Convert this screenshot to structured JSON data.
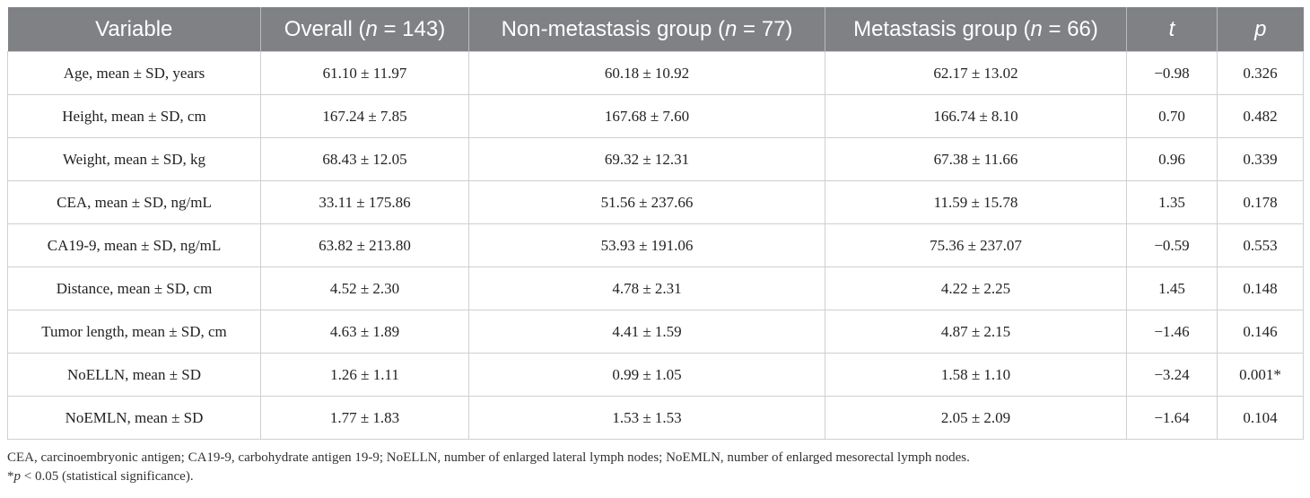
{
  "table": {
    "headers": [
      {
        "pre": "Variable",
        "it": "",
        "post": ""
      },
      {
        "pre": "Overall (",
        "it": "n",
        "post": " = 143)"
      },
      {
        "pre": "Non-metastasis group (",
        "it": "n",
        "post": " = 77)"
      },
      {
        "pre": "Metastasis group (",
        "it": "n",
        "post": " = 66)"
      },
      {
        "pre": "",
        "it": "t",
        "post": ""
      },
      {
        "pre": "",
        "it": "p",
        "post": ""
      }
    ],
    "rows": [
      [
        "Age, mean ± SD, years",
        "61.10 ± 11.97",
        "60.18 ± 10.92",
        "62.17 ± 13.02",
        "−0.98",
        "0.326"
      ],
      [
        "Height, mean ± SD, cm",
        "167.24 ± 7.85",
        "167.68 ± 7.60",
        "166.74 ± 8.10",
        "0.70",
        "0.482"
      ],
      [
        "Weight, mean ± SD, kg",
        "68.43 ± 12.05",
        "69.32 ± 12.31",
        "67.38 ± 11.66",
        "0.96",
        "0.339"
      ],
      [
        "CEA, mean ± SD, ng/mL",
        "33.11 ± 175.86",
        "51.56 ± 237.66",
        "11.59 ± 15.78",
        "1.35",
        "0.178"
      ],
      [
        "CA19-9, mean ± SD, ng/mL",
        "63.82 ± 213.80",
        "53.93 ± 191.06",
        "75.36 ± 237.07",
        "−0.59",
        "0.553"
      ],
      [
        "Distance, mean ± SD, cm",
        "4.52 ± 2.30",
        "4.78 ± 2.31",
        "4.22 ± 2.25",
        "1.45",
        "0.148"
      ],
      [
        "Tumor length, mean ± SD, cm",
        "4.63 ± 1.89",
        "4.41 ± 1.59",
        "4.87 ± 2.15",
        "−1.46",
        "0.146"
      ],
      [
        "NoELLN, mean ± SD",
        "1.26 ± 1.11",
        "0.99 ± 1.05",
        "1.58 ± 1.10",
        "−3.24",
        "0.001*"
      ],
      [
        "NoEMLN, mean ± SD",
        "1.77 ± 1.83",
        "1.53 ± 1.53",
        "2.05 ± 2.09",
        "−1.64",
        "0.104"
      ]
    ]
  },
  "footnotes": {
    "abbreviations": "CEA, carcinoembryonic antigen; CA19-9, carbohydrate antigen 19-9; NoELLN, number of enlarged lateral lymph nodes; NoEMLN, number of enlarged mesorectal lymph nodes.",
    "significance_star": "*",
    "significance_p": "p",
    "significance_rest": " < 0.05 (statistical significance)."
  }
}
